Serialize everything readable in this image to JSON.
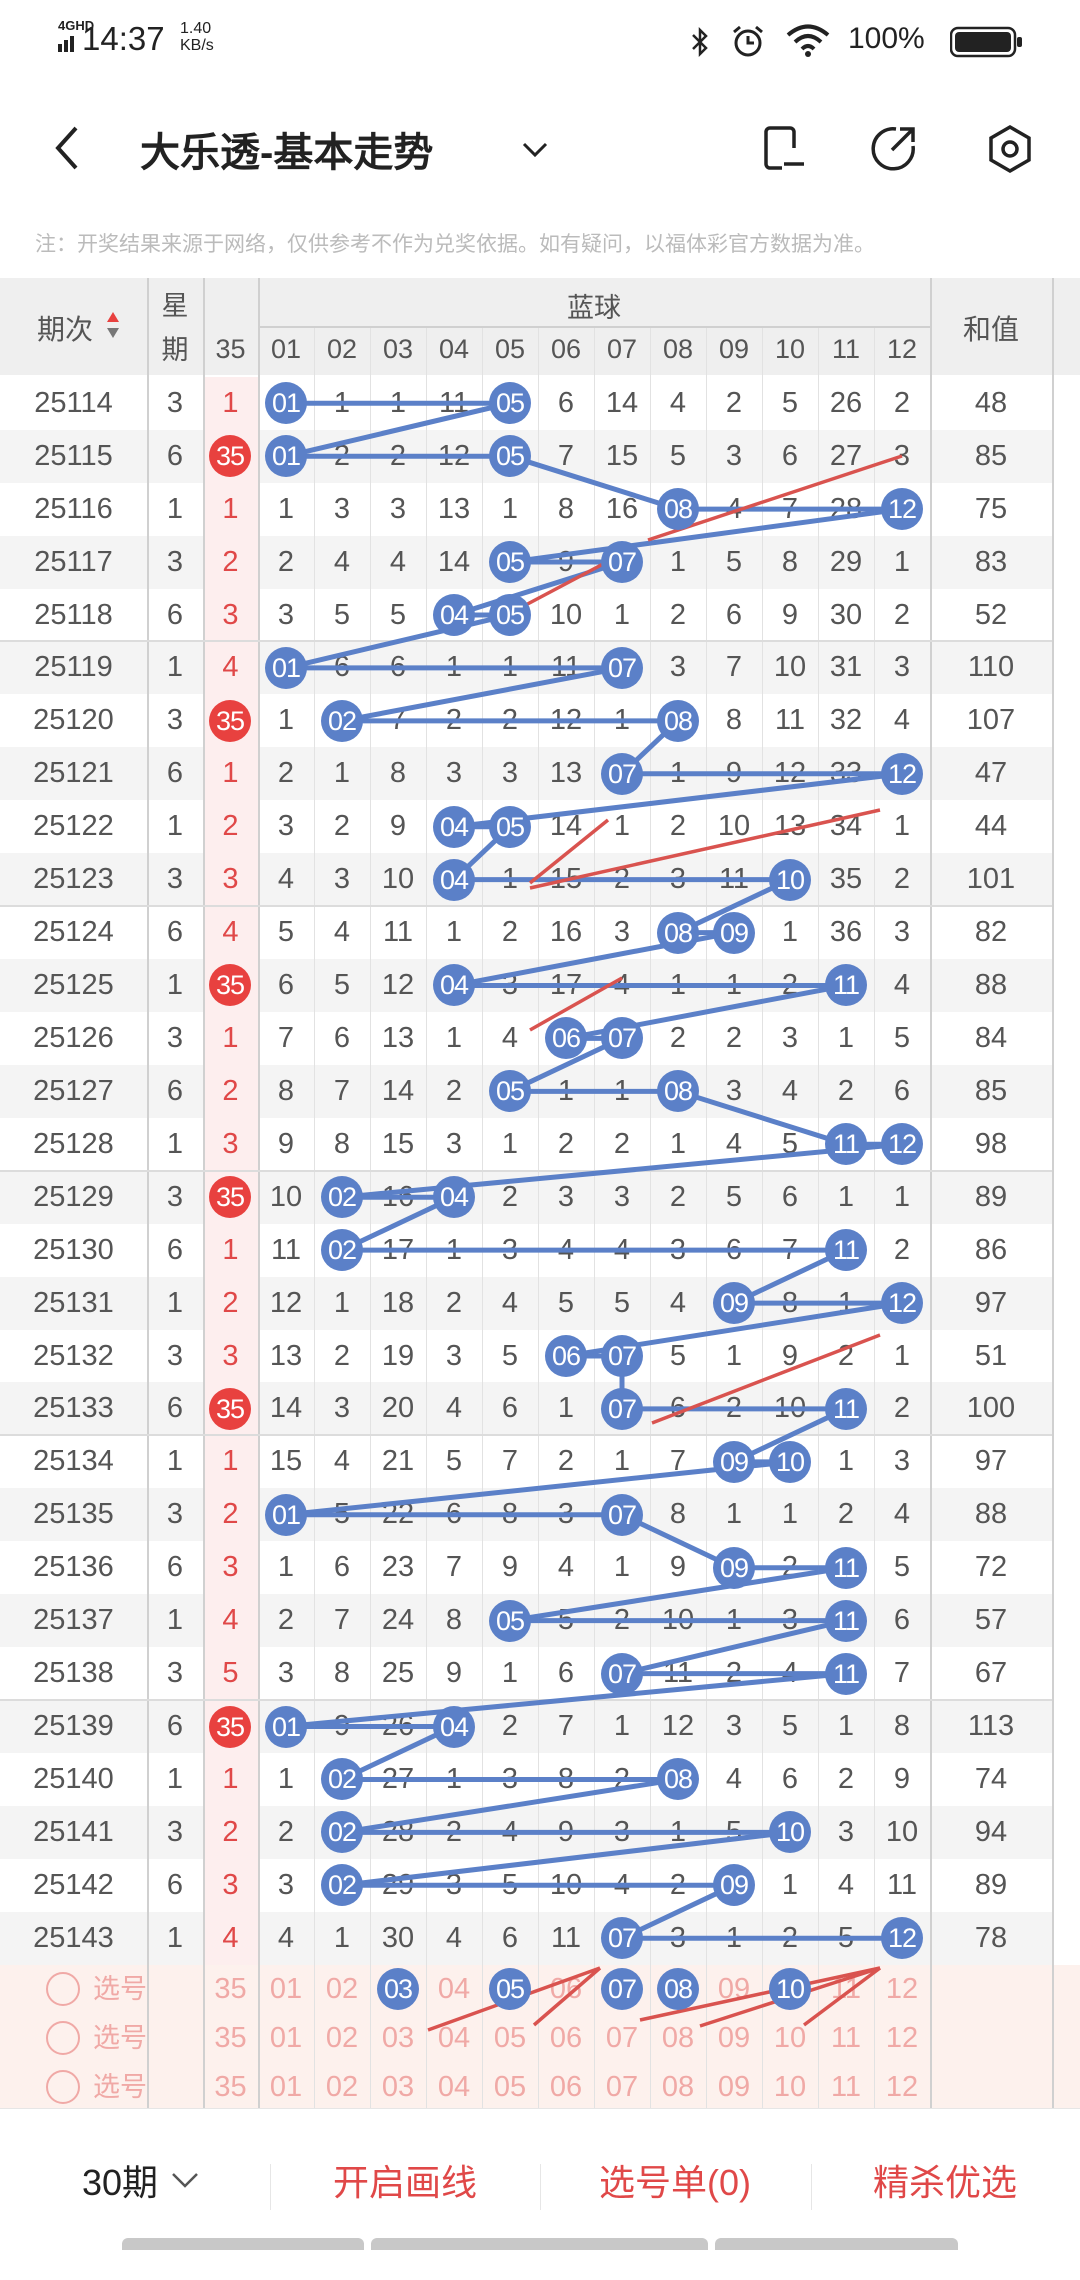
{
  "status_bar": {
    "network": "4GHD",
    "time": "14:37",
    "speed_value": "1.40",
    "speed_unit": "KB/s",
    "battery": "100%"
  },
  "header": {
    "title": "大乐透-基本走势",
    "icons": [
      "back-icon",
      "chevron-down-icon",
      "phone-icon",
      "share-icon",
      "settings-icon"
    ]
  },
  "note": "注：开奖结果来源于网络，仅供参考不作为兑奖依据。如有疑问，以福体彩官方数据为准。",
  "table": {
    "col_period": "期次",
    "col_weekday_1": "星",
    "col_weekday_2": "期",
    "col_35": "35",
    "group_label": "蓝球",
    "ball_cols": [
      "01",
      "02",
      "03",
      "04",
      "05",
      "06",
      "07",
      "08",
      "09",
      "10",
      "11",
      "12"
    ],
    "col_sum": "和值",
    "rows": [
      {
        "period": "25114",
        "weekday": "3",
        "c35": "1",
        "c35_hit": false,
        "cells": [
          "01",
          "1",
          "1",
          "11",
          "05",
          "6",
          "14",
          "4",
          "2",
          "5",
          "26",
          "2"
        ],
        "hits": [
          0,
          4
        ],
        "sum": "48"
      },
      {
        "period": "25115",
        "weekday": "6",
        "c35": "35",
        "c35_hit": true,
        "cells": [
          "01",
          "2",
          "2",
          "12",
          "05",
          "7",
          "15",
          "5",
          "3",
          "6",
          "27",
          "3"
        ],
        "hits": [
          0,
          4
        ],
        "sum": "85"
      },
      {
        "period": "25116",
        "weekday": "1",
        "c35": "1",
        "c35_hit": false,
        "cells": [
          "1",
          "3",
          "3",
          "13",
          "1",
          "8",
          "16",
          "08",
          "4",
          "7",
          "28",
          "12"
        ],
        "hits": [
          7,
          11
        ],
        "sum": "75"
      },
      {
        "period": "25117",
        "weekday": "3",
        "c35": "2",
        "c35_hit": false,
        "cells": [
          "2",
          "4",
          "4",
          "14",
          "05",
          "9",
          "07",
          "1",
          "5",
          "8",
          "29",
          "1"
        ],
        "hits": [
          4,
          6
        ],
        "sum": "83"
      },
      {
        "period": "25118",
        "weekday": "6",
        "c35": "3",
        "c35_hit": false,
        "cells": [
          "3",
          "5",
          "5",
          "04",
          "05",
          "10",
          "1",
          "2",
          "6",
          "9",
          "30",
          "2"
        ],
        "hits": [
          3,
          4
        ],
        "sum": "52"
      },
      {
        "period": "25119",
        "weekday": "1",
        "c35": "4",
        "c35_hit": false,
        "cells": [
          "01",
          "6",
          "6",
          "1",
          "1",
          "11",
          "07",
          "3",
          "7",
          "10",
          "31",
          "3"
        ],
        "hits": [
          0,
          6
        ],
        "sum": "110"
      },
      {
        "period": "25120",
        "weekday": "3",
        "c35": "35",
        "c35_hit": true,
        "cells": [
          "1",
          "02",
          "7",
          "2",
          "2",
          "12",
          "1",
          "08",
          "8",
          "11",
          "32",
          "4"
        ],
        "hits": [
          1,
          7
        ],
        "sum": "107"
      },
      {
        "period": "25121",
        "weekday": "6",
        "c35": "1",
        "c35_hit": false,
        "cells": [
          "2",
          "1",
          "8",
          "3",
          "3",
          "13",
          "07",
          "1",
          "9",
          "12",
          "33",
          "12"
        ],
        "hits": [
          6,
          11
        ],
        "sum": "47"
      },
      {
        "period": "25122",
        "weekday": "1",
        "c35": "2",
        "c35_hit": false,
        "cells": [
          "3",
          "2",
          "9",
          "04",
          "05",
          "14",
          "1",
          "2",
          "10",
          "13",
          "34",
          "1"
        ],
        "hits": [
          3,
          4
        ],
        "sum": "44"
      },
      {
        "period": "25123",
        "weekday": "3",
        "c35": "3",
        "c35_hit": false,
        "cells": [
          "4",
          "3",
          "10",
          "04",
          "1",
          "15",
          "2",
          "3",
          "11",
          "10",
          "35",
          "2"
        ],
        "hits": [
          3,
          9
        ],
        "sum": "101"
      },
      {
        "period": "25124",
        "weekday": "6",
        "c35": "4",
        "c35_hit": false,
        "cells": [
          "5",
          "4",
          "11",
          "1",
          "2",
          "16",
          "3",
          "08",
          "09",
          "1",
          "36",
          "3"
        ],
        "hits": [
          7,
          8
        ],
        "sum": "82"
      },
      {
        "period": "25125",
        "weekday": "1",
        "c35": "35",
        "c35_hit": true,
        "cells": [
          "6",
          "5",
          "12",
          "04",
          "3",
          "17",
          "4",
          "1",
          "1",
          "2",
          "11",
          "4"
        ],
        "hits": [
          3,
          10
        ],
        "sum": "88"
      },
      {
        "period": "25126",
        "weekday": "3",
        "c35": "1",
        "c35_hit": false,
        "cells": [
          "7",
          "6",
          "13",
          "1",
          "4",
          "06",
          "07",
          "2",
          "2",
          "3",
          "1",
          "5"
        ],
        "hits": [
          5,
          6
        ],
        "sum": "84"
      },
      {
        "period": "25127",
        "weekday": "6",
        "c35": "2",
        "c35_hit": false,
        "cells": [
          "8",
          "7",
          "14",
          "2",
          "05",
          "1",
          "1",
          "08",
          "3",
          "4",
          "2",
          "6"
        ],
        "hits": [
          4,
          7
        ],
        "sum": "85"
      },
      {
        "period": "25128",
        "weekday": "1",
        "c35": "3",
        "c35_hit": false,
        "cells": [
          "9",
          "8",
          "15",
          "3",
          "1",
          "2",
          "2",
          "1",
          "4",
          "5",
          "11",
          "12"
        ],
        "hits": [
          10,
          11
        ],
        "sum": "98"
      },
      {
        "period": "25129",
        "weekday": "3",
        "c35": "35",
        "c35_hit": true,
        "cells": [
          "10",
          "02",
          "16",
          "04",
          "2",
          "3",
          "3",
          "2",
          "5",
          "6",
          "1",
          "1"
        ],
        "hits": [
          1,
          3
        ],
        "sum": "89"
      },
      {
        "period": "25130",
        "weekday": "6",
        "c35": "1",
        "c35_hit": false,
        "cells": [
          "11",
          "02",
          "17",
          "1",
          "3",
          "4",
          "4",
          "3",
          "6",
          "7",
          "11",
          "2"
        ],
        "hits": [
          1,
          10
        ],
        "sum": "86"
      },
      {
        "period": "25131",
        "weekday": "1",
        "c35": "2",
        "c35_hit": false,
        "cells": [
          "12",
          "1",
          "18",
          "2",
          "4",
          "5",
          "5",
          "4",
          "09",
          "8",
          "1",
          "12"
        ],
        "hits": [
          8,
          11
        ],
        "sum": "97"
      },
      {
        "period": "25132",
        "weekday": "3",
        "c35": "3",
        "c35_hit": false,
        "cells": [
          "13",
          "2",
          "19",
          "3",
          "5",
          "06",
          "07",
          "5",
          "1",
          "9",
          "2",
          "1"
        ],
        "hits": [
          5,
          6
        ],
        "sum": "51"
      },
      {
        "period": "25133",
        "weekday": "6",
        "c35": "35",
        "c35_hit": true,
        "cells": [
          "14",
          "3",
          "20",
          "4",
          "6",
          "1",
          "07",
          "6",
          "2",
          "10",
          "11",
          "2"
        ],
        "hits": [
          6,
          10
        ],
        "sum": "100"
      },
      {
        "period": "25134",
        "weekday": "1",
        "c35": "1",
        "c35_hit": false,
        "cells": [
          "15",
          "4",
          "21",
          "5",
          "7",
          "2",
          "1",
          "7",
          "09",
          "10",
          "1",
          "3"
        ],
        "hits": [
          8,
          9
        ],
        "sum": "97"
      },
      {
        "period": "25135",
        "weekday": "3",
        "c35": "2",
        "c35_hit": false,
        "cells": [
          "01",
          "5",
          "22",
          "6",
          "8",
          "3",
          "07",
          "8",
          "1",
          "1",
          "2",
          "4"
        ],
        "hits": [
          0,
          6
        ],
        "sum": "88"
      },
      {
        "period": "25136",
        "weekday": "6",
        "c35": "3",
        "c35_hit": false,
        "cells": [
          "1",
          "6",
          "23",
          "7",
          "9",
          "4",
          "1",
          "9",
          "09",
          "2",
          "11",
          "5"
        ],
        "hits": [
          8,
          10
        ],
        "sum": "72"
      },
      {
        "period": "25137",
        "weekday": "1",
        "c35": "4",
        "c35_hit": false,
        "cells": [
          "2",
          "7",
          "24",
          "8",
          "05",
          "5",
          "2",
          "10",
          "1",
          "3",
          "11",
          "6"
        ],
        "hits": [
          4,
          10
        ],
        "sum": "57"
      },
      {
        "period": "25138",
        "weekday": "3",
        "c35": "5",
        "c35_hit": false,
        "cells": [
          "3",
          "8",
          "25",
          "9",
          "1",
          "6",
          "07",
          "11",
          "2",
          "4",
          "11",
          "7"
        ],
        "hits": [
          6,
          10
        ],
        "sum": "67"
      },
      {
        "period": "25139",
        "weekday": "6",
        "c35": "35",
        "c35_hit": true,
        "cells": [
          "01",
          "9",
          "26",
          "04",
          "2",
          "7",
          "1",
          "12",
          "3",
          "5",
          "1",
          "8"
        ],
        "hits": [
          0,
          3
        ],
        "sum": "113"
      },
      {
        "period": "25140",
        "weekday": "1",
        "c35": "1",
        "c35_hit": false,
        "cells": [
          "1",
          "02",
          "27",
          "1",
          "3",
          "8",
          "2",
          "08",
          "4",
          "6",
          "2",
          "9"
        ],
        "hits": [
          1,
          7
        ],
        "sum": "74"
      },
      {
        "period": "25141",
        "weekday": "3",
        "c35": "2",
        "c35_hit": false,
        "cells": [
          "2",
          "02",
          "28",
          "2",
          "4",
          "9",
          "3",
          "1",
          "5",
          "10",
          "3",
          "10"
        ],
        "hits": [
          1,
          9
        ],
        "sum": "94"
      },
      {
        "period": "25142",
        "weekday": "6",
        "c35": "3",
        "c35_hit": false,
        "cells": [
          "3",
          "02",
          "29",
          "3",
          "5",
          "10",
          "4",
          "2",
          "09",
          "1",
          "4",
          "11"
        ],
        "hits": [
          1,
          8
        ],
        "sum": "89"
      },
      {
        "period": "25143",
        "weekday": "1",
        "c35": "4",
        "c35_hit": false,
        "cells": [
          "4",
          "1",
          "30",
          "4",
          "6",
          "11",
          "07",
          "3",
          "1",
          "2",
          "5",
          "12"
        ],
        "hits": [
          6,
          11
        ],
        "sum": "78"
      }
    ],
    "select_rows": [
      {
        "label": "选号",
        "c35": "35",
        "selected": [
          2,
          4,
          6,
          7,
          9
        ]
      },
      {
        "label": "选号",
        "c35": "35",
        "selected": []
      },
      {
        "label": "选号",
        "c35": "35",
        "selected": []
      }
    ]
  },
  "bottom_bar": {
    "periods": "30期",
    "draw_lines": "开启画线",
    "pick_list": "选号单(0)",
    "optimize": "精杀优选"
  },
  "colors": {
    "ball_blue": "#5b80c8",
    "ball_red": "#e8413f",
    "accent_red": "#e04848"
  }
}
